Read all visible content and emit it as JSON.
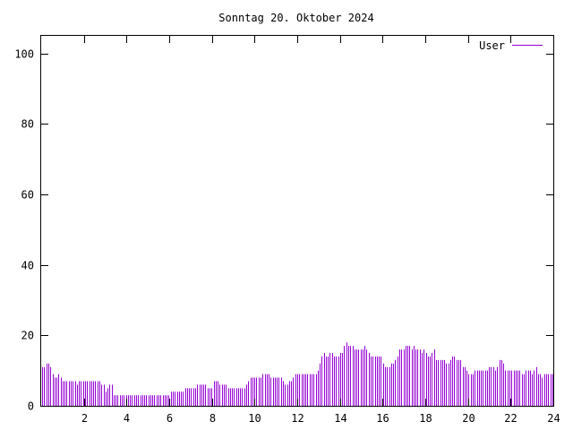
{
  "chart_data": {
    "type": "bar",
    "title": "Sonntag 20. Oktober 2024",
    "xlabel": "",
    "ylabel": "",
    "xlim": [
      0,
      24
    ],
    "ylim": [
      0,
      105
    ],
    "xticks": [
      "2",
      "4",
      "6",
      "8",
      "10",
      "12",
      "14",
      "16",
      "18",
      "20",
      "22",
      "24"
    ],
    "yticks": [
      "0",
      "20",
      "40",
      "60",
      "80",
      "100"
    ],
    "grid": false,
    "legend_position": "top-right",
    "series": [
      {
        "name": "User",
        "color": "#9400d3",
        "values": [
          11,
          11,
          12,
          12,
          11,
          9,
          8,
          8,
          9,
          8,
          7,
          7,
          7,
          7,
          7,
          7,
          7,
          6,
          7,
          7,
          7,
          7,
          7,
          7,
          7,
          7,
          7,
          7,
          7,
          6,
          6,
          4,
          5,
          6,
          6,
          3,
          3,
          3,
          3,
          3,
          3,
          3,
          3,
          3,
          3,
          3,
          3,
          3,
          3,
          3,
          3,
          3,
          3,
          3,
          3,
          3,
          3,
          3,
          3,
          3,
          3,
          3,
          3,
          4,
          4,
          4,
          4,
          4,
          4,
          4,
          5,
          5,
          5,
          5,
          5,
          5,
          6,
          6,
          6,
          6,
          6,
          5,
          5,
          5,
          7,
          7,
          7,
          6,
          6,
          6,
          6,
          5,
          5,
          5,
          5,
          5,
          5,
          5,
          5,
          5,
          6,
          7,
          8,
          8,
          8,
          8,
          8,
          8,
          9,
          9,
          9,
          9,
          8,
          8,
          8,
          8,
          8,
          8,
          7,
          6,
          6,
          7,
          7,
          8,
          9,
          9,
          9,
          9,
          9,
          9,
          9,
          9,
          9,
          9,
          9,
          10,
          12,
          14,
          15,
          14,
          14,
          15,
          15,
          14,
          14,
          14,
          15,
          15,
          17,
          18,
          17,
          17,
          17,
          16,
          16,
          16,
          16,
          16,
          17,
          16,
          15,
          14,
          14,
          14,
          14,
          14,
          14,
          12,
          11,
          11,
          11,
          12,
          12,
          13,
          14,
          16,
          16,
          16,
          17,
          17,
          17,
          16,
          17,
          16,
          16,
          16,
          15,
          16,
          15,
          14,
          14,
          15,
          16,
          13,
          13,
          13,
          13,
          13,
          12,
          12,
          13,
          14,
          14,
          13,
          13,
          13,
          11,
          11,
          10,
          9,
          9,
          9,
          10,
          10,
          10,
          10,
          10,
          10,
          10,
          11,
          11,
          11,
          10,
          11,
          13,
          13,
          12,
          10,
          10,
          10,
          10,
          10,
          10,
          10,
          10,
          9,
          9,
          10,
          10,
          10,
          9,
          10,
          11,
          9,
          9,
          8,
          9,
          9,
          9,
          9,
          9
        ]
      }
    ]
  }
}
